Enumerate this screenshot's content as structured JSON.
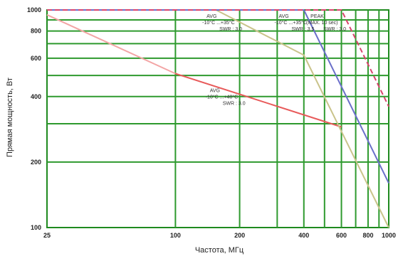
{
  "chart_data": {
    "type": "line",
    "xlabel": "Частота, МГц",
    "ylabel": "Прямая мощность, Вт",
    "xscale": "log",
    "yscale": "log",
    "xlim": [
      25,
      1000
    ],
    "ylim": [
      100,
      1000
    ],
    "xticks": [
      25,
      100,
      200,
      400,
      600,
      800,
      1000
    ],
    "yticks": [
      100,
      200,
      400,
      600,
      800,
      1000
    ],
    "grid": true,
    "grid_x": [
      100,
      200,
      300,
      400,
      500,
      600,
      700,
      800,
      900
    ],
    "grid_y": [
      200,
      300,
      400,
      500,
      600,
      700,
      800,
      900
    ],
    "series": [
      {
        "color": "#f3a5a5",
        "dashed": false,
        "x": [
          25,
          100
        ],
        "y": [
          950,
          510
        ]
      },
      {
        "color": "#e85a5a",
        "dashed": false,
        "x": [
          100,
          600
        ],
        "y": [
          510,
          290
        ]
      },
      {
        "color": "#c9c38a",
        "dashed": false,
        "x": [
          25,
          155,
          400,
          1000
        ],
        "y": [
          1000,
          1000,
          620,
          100
        ]
      },
      {
        "color": "#6a6fc9",
        "dashed": false,
        "x": [
          25,
          400,
          1000
        ],
        "y": [
          1000,
          1000,
          160
        ]
      },
      {
        "color": "#d9436c",
        "dashed": true,
        "x": [
          25,
          600,
          1000
        ],
        "y": [
          1000,
          1000,
          360
        ]
      }
    ],
    "annotations": [
      {
        "lines": [
          "AVG",
          "-10°C ...+35°C",
          "SWR : 3.0"
        ],
        "x": 140,
        "y": 920
      },
      {
        "lines": [
          "AVG",
          "-10°C ...+40°C",
          "SWR : 3.0"
        ],
        "x": 145,
        "y": 420
      },
      {
        "lines": [
          "AVG",
          "-10°C ...+35°C",
          "SWR : 3.5"
        ],
        "x": 305,
        "y": 920
      },
      {
        "lines": [
          "PEAK",
          "(MAX. 10 sec)",
          "SWR : 3.0"
        ],
        "x": 430,
        "y": 920
      }
    ]
  }
}
